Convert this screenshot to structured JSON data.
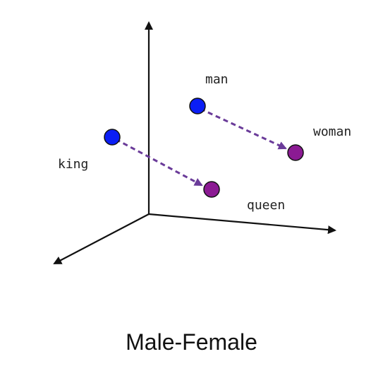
{
  "caption": "Male-Female",
  "words": {
    "man": "man",
    "woman": "woman",
    "king": "king",
    "queen": "queen"
  },
  "colors": {
    "male_point": "#0b1ef5",
    "female_point": "#8b1a93",
    "arrow": "#6a3b99",
    "axis": "#111111"
  }
}
